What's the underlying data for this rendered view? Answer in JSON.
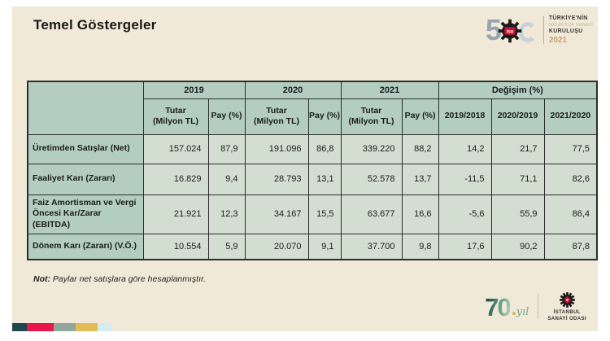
{
  "slide": {
    "title": "Temel Göstergeler",
    "note_label": "Not:",
    "note_text": " Paylar net satışlara göre hesaplanmıştır."
  },
  "top_logo": {
    "big_number": "5",
    "line1": "TÜRKİYE'NİN",
    "line2": "500 BÜYÜK SANAYİ",
    "line3": "KURULUŞU",
    "year": "2021"
  },
  "footer": {
    "anniversary_number": "70",
    "anniversary_suffix": "yıl",
    "iso_line1": "İSTANBUL",
    "iso_line2": "SANAYİ ODASI"
  },
  "table": {
    "col_groups": [
      {
        "label": "2019",
        "span": 2
      },
      {
        "label": "2020",
        "span": 2
      },
      {
        "label": "2021",
        "span": 2
      },
      {
        "label": "Değişim (%)",
        "span": 3
      }
    ],
    "sub_headers": [
      "Tutar\n(Milyon TL)",
      "Pay (%)",
      "Tutar\n(Milyon TL)",
      "Pay (%)",
      "Tutar\n(Milyon TL)",
      "Pay (%)",
      "2019/2018",
      "2020/2019",
      "2021/2020"
    ],
    "rows": [
      {
        "label": "Üretimden Satışlar (Net)",
        "values": [
          "157.024",
          "87,9",
          "191.096",
          "86,8",
          "339.220",
          "88,2",
          "14,2",
          "21,7",
          "77,5"
        ]
      },
      {
        "label": "Faaliyet Karı (Zararı)",
        "values": [
          "16.829",
          "9,4",
          "28.793",
          "13,1",
          "52.578",
          "13,7",
          "-11,5",
          "71,1",
          "82,6"
        ]
      },
      {
        "label": "Faiz Amortisman ve Vergi Öncesi Kar/Zarar (EBITDA)",
        "values": [
          "21.921",
          "12,3",
          "34.167",
          "15,5",
          "63.677",
          "16,6",
          "-5,6",
          "55,9",
          "86,4"
        ]
      },
      {
        "label": "Dönem Karı (Zararı) (V.Ö.)",
        "values": [
          "10.554",
          "5,9",
          "20.070",
          "9,1",
          "37.700",
          "9,8",
          "17,6",
          "90,2",
          "87,8"
        ]
      }
    ]
  },
  "colors": {
    "slide_bg": "#f1e9d8",
    "table_header_green": "#b3cec1",
    "table_cell_green": "#d2ded0",
    "table_border": "#2d2d2d",
    "accent_red": "#c41230",
    "accent_gold": "#c5a369",
    "footer_bars": [
      "#1d494d",
      "#e8174b",
      "#8fa89b",
      "#e3bb58",
      "#d5edee"
    ]
  }
}
